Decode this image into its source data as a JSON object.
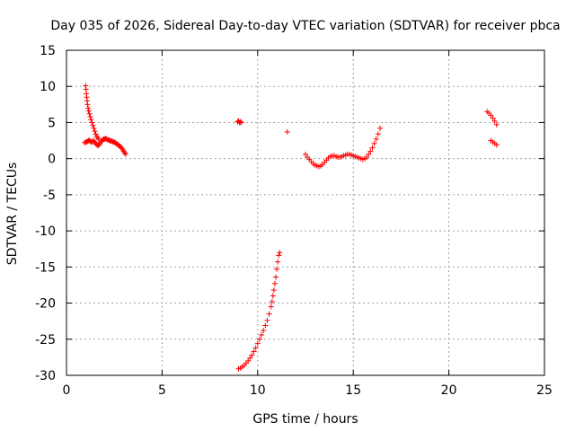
{
  "chart_data": {
    "type": "scatter",
    "title": "Day 035 of 2026, Sidereal Day-to-day VTEC variation (SDTVAR) for receiver pbca",
    "xlabel": "GPS time / hours",
    "ylabel": "SDTVAR / TECUs",
    "xlim": [
      0,
      25
    ],
    "ylim": [
      -30,
      15
    ],
    "xticks": [
      0,
      5,
      10,
      15,
      20,
      25
    ],
    "yticks": [
      15,
      10,
      5,
      0,
      -5,
      -10,
      -15,
      -20,
      -25,
      -30
    ],
    "grid": true,
    "marker": "+",
    "color": "#ff0000",
    "series": [
      {
        "name": "pbca",
        "points": [
          [
            1.0,
            10.1
          ],
          [
            1.02,
            9.6
          ],
          [
            1.04,
            9.0
          ],
          [
            1.06,
            8.5
          ],
          [
            1.08,
            8.0
          ],
          [
            1.1,
            7.5
          ],
          [
            1.13,
            7.0
          ],
          [
            1.16,
            6.6
          ],
          [
            1.2,
            6.2
          ],
          [
            1.24,
            5.8
          ],
          [
            1.28,
            5.4
          ],
          [
            1.33,
            5.0
          ],
          [
            1.38,
            4.6
          ],
          [
            1.43,
            4.2
          ],
          [
            1.48,
            3.8
          ],
          [
            1.53,
            3.4
          ],
          [
            1.58,
            3.1
          ],
          [
            1.63,
            2.9
          ],
          [
            1.68,
            2.7
          ],
          [
            0.95,
            2.2
          ],
          [
            1.0,
            2.3
          ],
          [
            1.05,
            2.3
          ],
          [
            1.1,
            2.4
          ],
          [
            1.15,
            2.5
          ],
          [
            1.2,
            2.5
          ],
          [
            1.25,
            2.4
          ],
          [
            1.3,
            2.3
          ],
          [
            1.35,
            2.3
          ],
          [
            1.4,
            2.5
          ],
          [
            1.45,
            2.4
          ],
          [
            1.5,
            2.2
          ],
          [
            1.55,
            2.0
          ],
          [
            1.6,
            1.9
          ],
          [
            1.65,
            1.8
          ],
          [
            1.7,
            1.9
          ],
          [
            1.75,
            2.1
          ],
          [
            1.8,
            2.3
          ],
          [
            1.85,
            2.5
          ],
          [
            1.9,
            2.6
          ],
          [
            1.95,
            2.7
          ],
          [
            2.0,
            2.7
          ],
          [
            2.05,
            2.8
          ],
          [
            2.1,
            2.7
          ],
          [
            2.15,
            2.6
          ],
          [
            2.2,
            2.6
          ],
          [
            2.25,
            2.5
          ],
          [
            2.3,
            2.5
          ],
          [
            2.35,
            2.4
          ],
          [
            2.4,
            2.4
          ],
          [
            2.45,
            2.3
          ],
          [
            2.5,
            2.3
          ],
          [
            2.55,
            2.2
          ],
          [
            2.6,
            2.1
          ],
          [
            2.65,
            2.0
          ],
          [
            2.7,
            1.9
          ],
          [
            2.75,
            1.8
          ],
          [
            2.8,
            1.7
          ],
          [
            2.85,
            1.6
          ],
          [
            2.9,
            1.4
          ],
          [
            2.95,
            1.2
          ],
          [
            3.0,
            1.0
          ],
          [
            3.05,
            0.8
          ],
          [
            3.1,
            0.6
          ],
          [
            8.95,
            5.1
          ],
          [
            9.0,
            5.2
          ],
          [
            9.05,
            5.0
          ],
          [
            9.1,
            5.1
          ],
          [
            9.15,
            5.0
          ],
          [
            11.55,
            3.7
          ],
          [
            9.0,
            -29.1
          ],
          [
            9.1,
            -29.0
          ],
          [
            9.2,
            -28.8
          ],
          [
            9.3,
            -28.6
          ],
          [
            9.4,
            -28.3
          ],
          [
            9.5,
            -28.0
          ],
          [
            9.6,
            -27.6
          ],
          [
            9.7,
            -27.2
          ],
          [
            9.8,
            -26.7
          ],
          [
            9.9,
            -26.2
          ],
          [
            10.0,
            -25.6
          ],
          [
            10.1,
            -25.0
          ],
          [
            10.2,
            -24.4
          ],
          [
            10.3,
            -23.8
          ],
          [
            10.4,
            -23.1
          ],
          [
            10.5,
            -22.4
          ],
          [
            10.6,
            -21.5
          ],
          [
            10.7,
            -20.5
          ],
          [
            10.75,
            -19.8
          ],
          [
            10.8,
            -19.0
          ],
          [
            10.85,
            -18.2
          ],
          [
            10.9,
            -17.3
          ],
          [
            10.95,
            -16.4
          ],
          [
            11.0,
            -15.3
          ],
          [
            11.05,
            -14.3
          ],
          [
            11.1,
            -13.4
          ],
          [
            11.15,
            -13.0
          ],
          [
            12.5,
            0.6
          ],
          [
            12.6,
            0.2
          ],
          [
            12.7,
            -0.1
          ],
          [
            12.8,
            -0.4
          ],
          [
            12.9,
            -0.7
          ],
          [
            13.0,
            -0.9
          ],
          [
            13.1,
            -1.0
          ],
          [
            13.2,
            -1.1
          ],
          [
            13.3,
            -1.0
          ],
          [
            13.4,
            -0.8
          ],
          [
            13.5,
            -0.5
          ],
          [
            13.6,
            -0.2
          ],
          [
            13.7,
            0.1
          ],
          [
            13.8,
            0.3
          ],
          [
            13.9,
            0.4
          ],
          [
            14.0,
            0.4
          ],
          [
            14.1,
            0.3
          ],
          [
            14.2,
            0.2
          ],
          [
            14.3,
            0.2
          ],
          [
            14.4,
            0.3
          ],
          [
            14.5,
            0.4
          ],
          [
            14.6,
            0.5
          ],
          [
            14.7,
            0.6
          ],
          [
            14.8,
            0.6
          ],
          [
            14.9,
            0.5
          ],
          [
            15.0,
            0.4
          ],
          [
            15.1,
            0.3
          ],
          [
            15.2,
            0.2
          ],
          [
            15.3,
            0.1
          ],
          [
            15.4,
            0.0
          ],
          [
            15.5,
            -0.1
          ],
          [
            15.6,
            0.0
          ],
          [
            15.7,
            0.2
          ],
          [
            15.8,
            0.6
          ],
          [
            15.9,
            1.0
          ],
          [
            16.0,
            1.5
          ],
          [
            16.1,
            2.1
          ],
          [
            16.2,
            2.7
          ],
          [
            16.3,
            3.4
          ],
          [
            16.4,
            4.2
          ],
          [
            22.0,
            6.5
          ],
          [
            22.1,
            6.3
          ],
          [
            22.2,
            6.0
          ],
          [
            22.3,
            5.6
          ],
          [
            22.4,
            5.2
          ],
          [
            22.5,
            4.7
          ],
          [
            22.2,
            2.5
          ],
          [
            22.3,
            2.3
          ],
          [
            22.4,
            2.1
          ],
          [
            22.5,
            1.9
          ]
        ]
      }
    ]
  }
}
